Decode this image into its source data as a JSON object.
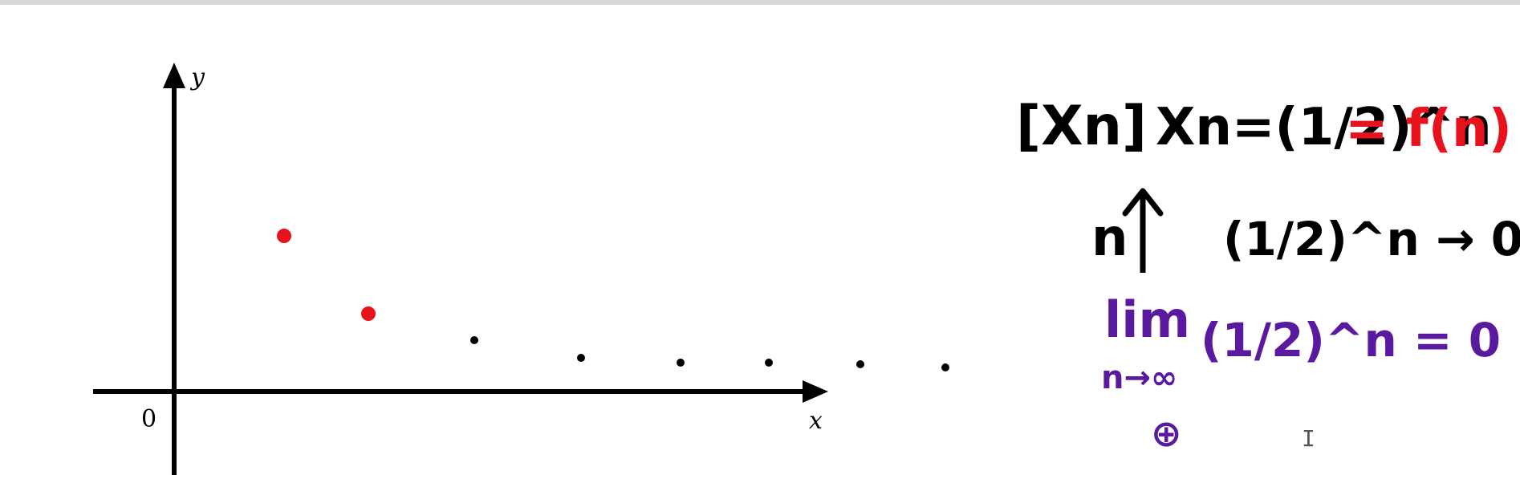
{
  "plot": {
    "x_axis_label": "x",
    "y_axis_label": "y",
    "origin_label": "0"
  },
  "points": [
    {
      "n": 1,
      "value": 0.5,
      "highlight": true
    },
    {
      "n": 2,
      "value": 0.25,
      "highlight": true
    },
    {
      "n": 3,
      "value": 0.125,
      "highlight": false
    },
    {
      "n": 4,
      "value": 0.0625,
      "highlight": false
    },
    {
      "n": 5,
      "value": 0.03125,
      "highlight": false
    },
    {
      "n": 6,
      "value": 0.015625,
      "highlight": false
    },
    {
      "n": 7,
      "value": 0.0078125,
      "highlight": false
    },
    {
      "n": 8,
      "value": 0.00390625,
      "highlight": false
    }
  ],
  "notes": {
    "sequence_symbol": "[Xn]",
    "definition": "Xn=(1/2)^n",
    "function_part": "= f(n)",
    "increase_label": "n",
    "tends_to": "(1/2)^n → 0",
    "limit_word": "lim",
    "limit_sub": "n→∞",
    "limit_rest": "(1/2)^n = 0 .",
    "extra_symbol": "⊕",
    "cursor_glyph": "I"
  },
  "colors": {
    "axis": "#000000",
    "highlight_point": "#e8121c",
    "plain_point": "#000000",
    "red_note": "#e8121c",
    "purple_note": "#5a1aa0",
    "black_note": "#000000"
  }
}
